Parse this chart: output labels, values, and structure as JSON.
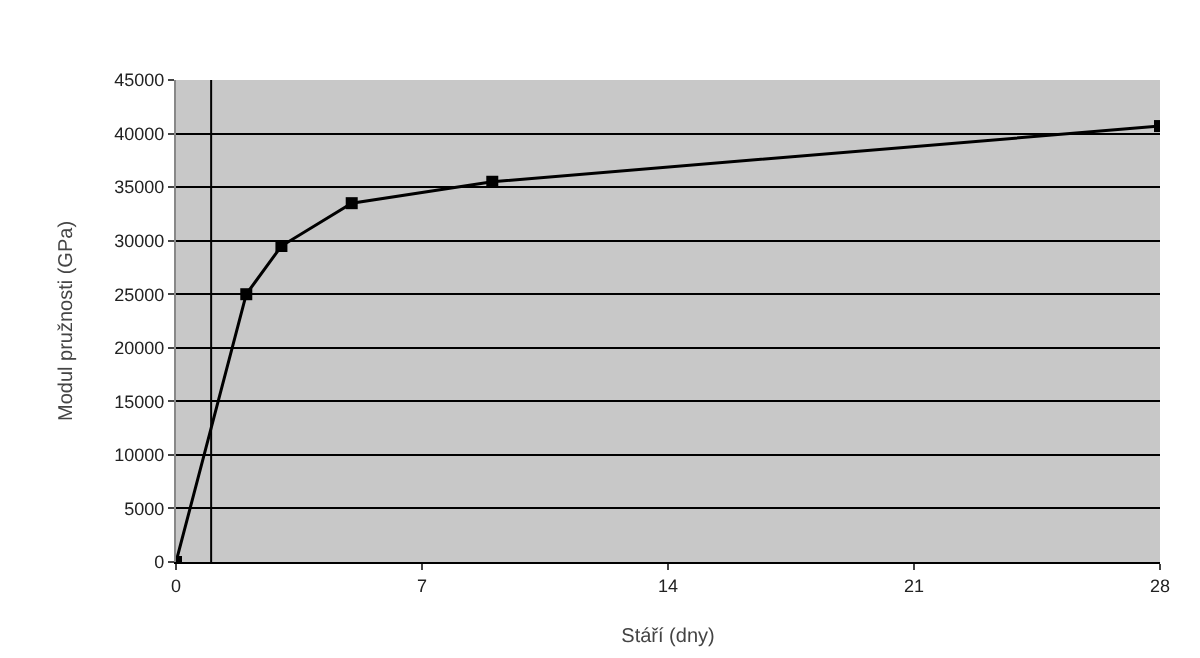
{
  "chart_data": {
    "type": "line",
    "xlabel": "Stáří (dny)",
    "ylabel": "Modul pružnosti (GPa)",
    "x": [
      0,
      2,
      3,
      5,
      9,
      28
    ],
    "series": [
      {
        "color": "#000000",
        "values": [
          0,
          25000,
          29500,
          33500,
          35500,
          40700
        ]
      }
    ],
    "xlim": [
      0,
      28
    ],
    "xticks": [
      0,
      7,
      14,
      21,
      28
    ],
    "ylim": [
      0,
      45000
    ],
    "yticks": [
      0,
      5000,
      10000,
      15000,
      20000,
      25000,
      30000,
      35000,
      40000,
      45000
    ],
    "grid": "y",
    "marker": "square",
    "line_style": "solid",
    "ref_lines": [
      {
        "axis": "x",
        "value": 1,
        "color": "#000000"
      }
    ]
  }
}
